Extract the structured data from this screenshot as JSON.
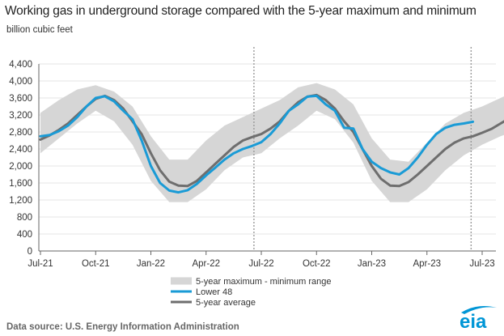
{
  "title": "Working gas in underground  storage compared with the 5-year maximum and minimum",
  "source": "Data source:  U.S. Energy Information Administration",
  "logo_text": "eia",
  "colors": {
    "lower48": "#1a9bd6",
    "avg": "#6e6e6e",
    "range": "#d6d6d6",
    "grid": "#e6e6e6",
    "axis": "#666666",
    "vline": "#9a9a9a",
    "logo_blue": "#0096d6"
  },
  "chart_data": {
    "type": "line",
    "title": "Working gas in underground  storage compared with the 5-year maximum and minimum",
    "ylabel": "billion cubic feet",
    "xlabel": "",
    "ylim": [
      0,
      4400
    ],
    "xlim": [
      0,
      26
    ],
    "y_ticks": [
      0,
      400,
      800,
      1200,
      1600,
      2000,
      2400,
      2800,
      3200,
      3600,
      4000,
      4400
    ],
    "y_tick_labels": [
      "0",
      "400",
      "800",
      "1,200",
      "1,600",
      "2,000",
      "2,400",
      "2,800",
      "3,200",
      "3,600",
      "4,000",
      "4,400"
    ],
    "x_ticks": [
      0,
      3,
      6,
      9,
      12,
      15,
      18,
      21,
      24
    ],
    "x_tick_labels": [
      "Jul-21",
      "Oct-21",
      "Jan-22",
      "Apr-22",
      "Jul-22",
      "Oct-22",
      "Jan-23",
      "Apr-23",
      "Jul-23"
    ],
    "grid": true,
    "vertical_markers": [
      11.6,
      23.4
    ],
    "legend": [
      "5-year maximum - minimum range",
      "Lower 48",
      "5-year average"
    ],
    "range_band": {
      "name": "5-year maximum - minimum range",
      "x": [
        0,
        1,
        2,
        3,
        4,
        5,
        6,
        7,
        8,
        9,
        10,
        11,
        12,
        13,
        14,
        15,
        16,
        17,
        18,
        19,
        20,
        21,
        22,
        23,
        24,
        25,
        26
      ],
      "max": [
        3250,
        3550,
        3800,
        3900,
        3750,
        3400,
        2700,
        2150,
        2150,
        2600,
        2950,
        3150,
        3350,
        3550,
        3850,
        3950,
        3800,
        3450,
        2650,
        2150,
        2100,
        2550,
        3000,
        3250,
        3400,
        3600,
        3800
      ],
      "min": [
        2300,
        2650,
        3000,
        3300,
        3050,
        2500,
        1650,
        1150,
        1150,
        1450,
        1900,
        2200,
        2300,
        2650,
        2950,
        3300,
        3100,
        2550,
        1650,
        1150,
        1150,
        1450,
        1900,
        2250,
        2500,
        2700,
        2850
      ]
    },
    "series": [
      {
        "name": "Lower 48",
        "x": [
          0,
          0.5,
          1,
          1.5,
          2,
          2.5,
          3,
          3.5,
          4,
          4.5,
          5,
          5.5,
          6,
          6.5,
          7,
          7.5,
          8,
          8.5,
          9,
          9.5,
          10,
          10.5,
          11,
          11.5,
          12,
          12.5,
          13,
          13.5,
          14,
          14.5,
          15,
          15.5,
          16,
          16.5,
          17,
          17.5,
          18,
          18.5,
          19,
          19.5,
          20,
          20.5,
          21,
          21.5,
          22,
          22.5,
          23,
          23.5
        ],
        "values": [
          2700,
          2730,
          2820,
          2950,
          3150,
          3400,
          3600,
          3640,
          3520,
          3300,
          3100,
          2600,
          2000,
          1600,
          1420,
          1380,
          1430,
          1580,
          1780,
          1960,
          2150,
          2300,
          2400,
          2470,
          2560,
          2750,
          3000,
          3300,
          3450,
          3630,
          3650,
          3450,
          3300,
          2900,
          2880,
          2400,
          2100,
          1950,
          1850,
          1800,
          1950,
          2200,
          2500,
          2750,
          2900,
          2970,
          3000,
          3040
        ]
      },
      {
        "name": "5-year average",
        "x": [
          0,
          0.5,
          1,
          1.5,
          2,
          2.5,
          3,
          3.5,
          4,
          4.5,
          5,
          5.5,
          6,
          6.5,
          7,
          7.5,
          8,
          8.5,
          9,
          9.5,
          10,
          10.5,
          11,
          11.5,
          12,
          12.5,
          13,
          13.5,
          14,
          14.5,
          15,
          15.5,
          16,
          16.5,
          17,
          17.5,
          18,
          18.5,
          19,
          19.5,
          20,
          20.5,
          21,
          21.5,
          22,
          22.5,
          23,
          23.5,
          24,
          24.5,
          25,
          25.5,
          26
        ],
        "values": [
          2620,
          2720,
          2850,
          3000,
          3200,
          3400,
          3580,
          3650,
          3550,
          3350,
          3050,
          2750,
          2300,
          1900,
          1630,
          1540,
          1530,
          1650,
          1850,
          2050,
          2250,
          2450,
          2600,
          2680,
          2750,
          2880,
          3050,
          3300,
          3500,
          3630,
          3670,
          3550,
          3350,
          3050,
          2800,
          2400,
          2000,
          1700,
          1540,
          1530,
          1620,
          1800,
          2000,
          2200,
          2400,
          2550,
          2650,
          2700,
          2780,
          2870,
          3000,
          3130,
          3280
        ]
      }
    ]
  }
}
